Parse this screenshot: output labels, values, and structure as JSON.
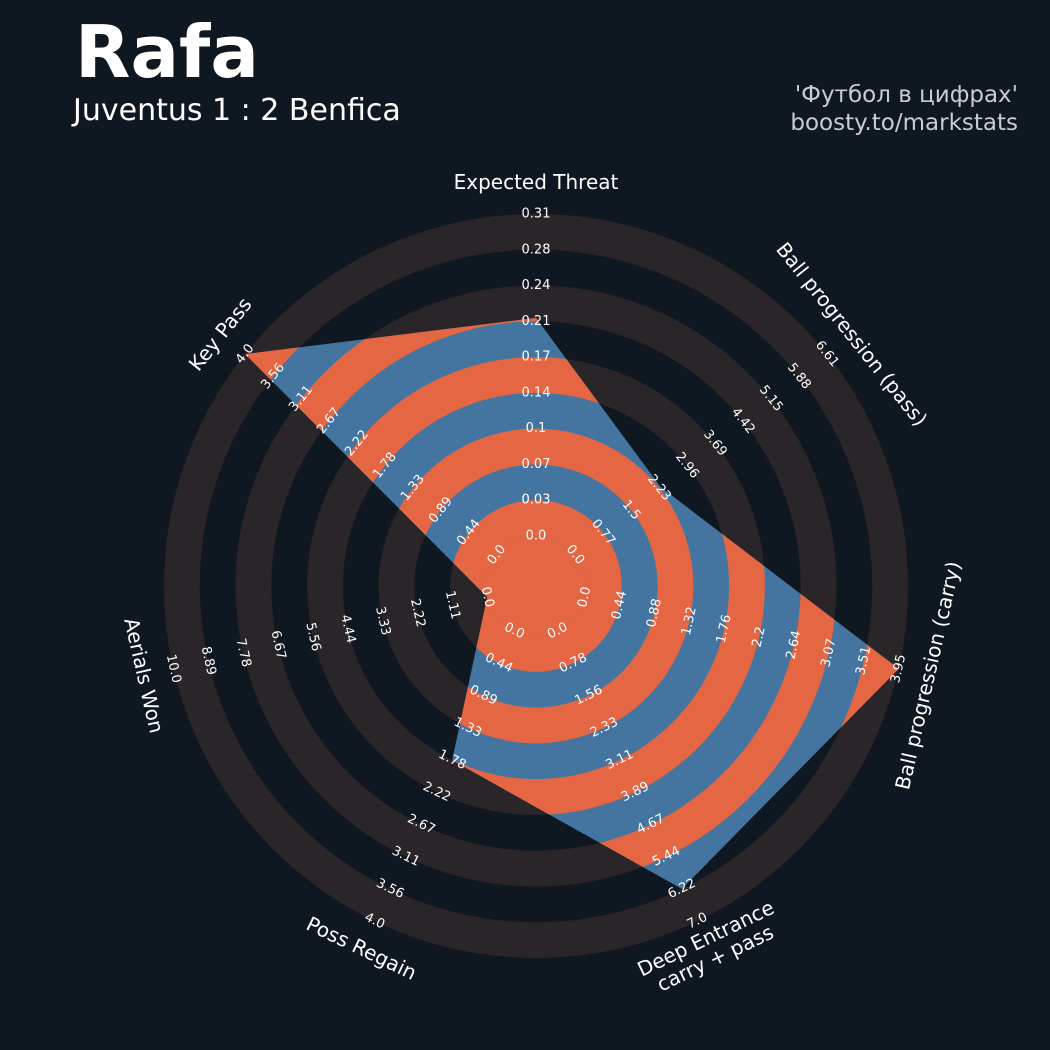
{
  "header": {
    "player": "Rafa",
    "match": "Juventus 1 : 2 Benfica",
    "credit_line1": "'Футбол в цифрах'",
    "credit_line2": "boosty.to/markstats"
  },
  "colors": {
    "background": "#0f1820",
    "outer_ring_band": "#2a2529",
    "polygon_blue": "#4375a0",
    "polygon_orange": "#e56642",
    "text": "#ffffff"
  },
  "chart_data": {
    "type": "radar",
    "params": [
      {
        "label": "Expected Threat",
        "lines": [
          "Expected Threat"
        ],
        "min": 0.0,
        "max": 0.31,
        "value": 0.21,
        "ticks": [
          "0.0",
          "0.03",
          "0.07",
          "0.1",
          "0.14",
          "0.17",
          "0.21",
          "0.24",
          "0.28",
          "0.31"
        ]
      },
      {
        "label": "Ball progression (pass)",
        "lines": [
          "Ball progression (pass)"
        ],
        "min": 0.0,
        "max": 6.61,
        "value": 2.24,
        "ticks": [
          "0.0",
          "0.77",
          "1.5",
          "2.23",
          "2.96",
          "3.69",
          "4.42",
          "5.15",
          "5.88",
          "6.61"
        ]
      },
      {
        "label": "Ball progression (carry)",
        "lines": [
          "Ball progression (carry)"
        ],
        "min": 0.0,
        "max": 3.95,
        "value": 3.95,
        "ticks": [
          "0.0",
          "0.44",
          "0.88",
          "1.32",
          "1.76",
          "2.2",
          "2.64",
          "3.07",
          "3.51",
          "3.95"
        ]
      },
      {
        "label": "Deep Entrance carry + pass",
        "lines": [
          "Deep Entrance",
          "carry + pass"
        ],
        "min": 0.0,
        "max": 7.0,
        "value": 6.22,
        "ticks": [
          "0.0",
          "0.78",
          "1.56",
          "2.33",
          "3.11",
          "3.89",
          "4.67",
          "5.44",
          "6.22",
          "7.0"
        ]
      },
      {
        "label": "Poss Regain",
        "lines": [
          "Poss Regain"
        ],
        "min": 0.0,
        "max": 4.0,
        "value": 1.78,
        "ticks": [
          "0.0",
          "0.44",
          "0.89",
          "1.33",
          "1.78",
          "2.22",
          "2.67",
          "3.11",
          "3.56",
          "4.0"
        ]
      },
      {
        "label": "Aerials Won",
        "lines": [
          "Aerials Won"
        ],
        "min": 0.0,
        "max": 10.0,
        "value": 0.0,
        "ticks": [
          "0.0",
          "1.11",
          "2.22",
          "3.33",
          "4.44",
          "5.56",
          "6.67",
          "7.78",
          "8.89",
          "10.0"
        ]
      },
      {
        "label": "Key Pass",
        "lines": [
          "Key Pass"
        ],
        "min": 0.0,
        "max": 4.0,
        "value": 4.0,
        "ticks": [
          "0.0",
          "0.44",
          "0.89",
          "1.33",
          "1.78",
          "2.22",
          "2.67",
          "3.11",
          "3.56",
          "4.0"
        ]
      }
    ],
    "rings": 9,
    "start_angle": "top",
    "direction": "clockwise"
  }
}
